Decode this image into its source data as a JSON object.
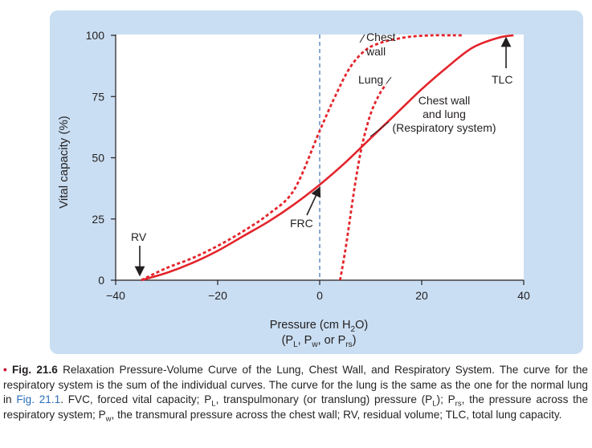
{
  "chart_data": {
    "type": "line",
    "xlabel": "Pressure (cm H₂O)",
    "xlabel_sub": "(Pₗ, Pᵂ, or Pᵣₛ)",
    "ylabel": "Vital capacity (%)",
    "xlim": [
      -40,
      40
    ],
    "ylim": [
      0,
      100
    ],
    "xticks": [
      -40,
      -20,
      0,
      20,
      40
    ],
    "xtick_labels": [
      "−40",
      "−20",
      "0",
      "20",
      "40"
    ],
    "yticks": [
      0,
      25,
      50,
      75,
      100
    ],
    "ytick_labels": [
      "0",
      "25",
      "50",
      "75",
      "100"
    ],
    "grid": false,
    "vline_x": 0,
    "series": [
      {
        "name": "Chest wall and lung (Respiratory system)",
        "style": "solid",
        "color": "#e3242b",
        "x": [
          -35,
          -30,
          -25,
          -20,
          -15,
          -10,
          -5,
          0,
          5,
          10,
          15,
          20,
          25,
          30,
          35,
          38
        ],
        "y": [
          0,
          3,
          7,
          12,
          18,
          24,
          31,
          39,
          48,
          58,
          68,
          78,
          87,
          95,
          99,
          100
        ]
      },
      {
        "name": "Chest wall",
        "style": "dashed",
        "color": "#e3242b",
        "x": [
          -35,
          -30,
          -25,
          -20,
          -15,
          -10,
          -5,
          0,
          3,
          6,
          9,
          12,
          15,
          18,
          22,
          26,
          28
        ],
        "y": [
          0,
          5,
          9,
          14,
          20,
          27,
          37,
          61,
          75,
          87,
          94,
          97,
          98.5,
          99.5,
          100,
          100,
          100
        ]
      },
      {
        "name": "Lung",
        "style": "dashed",
        "color": "#e3242b",
        "x": [
          4,
          5,
          6,
          7,
          8,
          9,
          10,
          11,
          12,
          13
        ],
        "y": [
          0,
          12,
          26,
          40,
          52,
          61,
          68,
          73,
          77,
          80
        ]
      }
    ],
    "annotations": [
      {
        "text": "Chest wall",
        "x": 9,
        "y": 98
      },
      {
        "text": "Lung",
        "x": 8,
        "y": 82
      },
      {
        "text": "Chest wall and lung (Respiratory system)",
        "x": 20,
        "y": 68
      },
      {
        "text": "TLC",
        "x": 38,
        "y": 100
      },
      {
        "text": "RV",
        "x": -35,
        "y": 0
      },
      {
        "text": "FRC",
        "x": 0,
        "y": 39
      }
    ]
  },
  "labels": {
    "chest_wall_line1": "Chest",
    "chest_wall_line2": "wall",
    "lung": "Lung",
    "rs_line1": "Chest wall",
    "rs_line2": "and lung",
    "rs_line3": "(Respiratory system)",
    "tlc": "TLC",
    "rv": "RV",
    "frc": "FRC"
  },
  "axes": {
    "ylabel": "Vital capacity (%)",
    "xlabel_line1_pre": "Pressure (cm H",
    "xlabel_line1_sub": "2",
    "xlabel_line1_post": "O)",
    "xlabel_line2_a": "(P",
    "xlabel_line2_sub1": "L",
    "xlabel_line2_b": ", P",
    "xlabel_line2_sub2": "w",
    "xlabel_line2_c": ", or P",
    "xlabel_line2_sub3": "rs",
    "xlabel_line2_d": ")"
  },
  "caption": {
    "bullet": "•",
    "figure_number": "Fig. 21.6",
    "t1": " Relaxation Pressure-Volume Curve of the Lung, Chest Wall, and Respiratory System. The curve for the respiratory system is the sum of the individual curves. The curve for the lung is the same as the one for the normal lung in ",
    "link": "Fig. 21.1",
    "t2": ". FVC, forced vital capacity; P",
    "s1": "L",
    "t3": ", transpulmonary (or translung) pressure (P",
    "s2": "L",
    "t4": "); P",
    "s3": "rs",
    "t5": ", the pressure across the respiratory system; P",
    "s4": "w",
    "t6": ", the transmural pressure across the chest wall; RV, residual volume; TLC, total lung capacity."
  },
  "colors": {
    "curve": "#e3242b",
    "frc_line": "#4a78b8",
    "background": "#c9def2",
    "caption_bullet": "#c8102e",
    "caption_link": "#2a6ebb"
  }
}
